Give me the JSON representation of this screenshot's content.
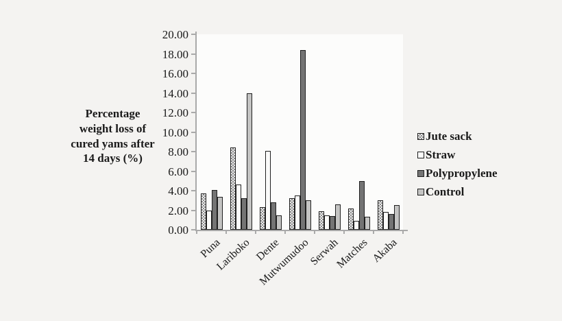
{
  "figure": {
    "background_color": "#f4f3f1",
    "plot_background_color": "#fcfcfb",
    "axis_color": "#a9a9a9",
    "bar_border_color": "#1f1f1f",
    "text_color": "#1a1a1a"
  },
  "chart_data": {
    "type": "bar",
    "title": "",
    "xlabel": "",
    "ylabel": "Percentage\nweight loss of\ncured yams after\n14 days (%)",
    "ylim": [
      0,
      20
    ],
    "ytick_step": 2,
    "ytick_labels": [
      "0.00",
      "2.00",
      "4.00",
      "6.00",
      "8.00",
      "10.00",
      "12.00",
      "14.00",
      "16.00",
      "18.00",
      "20.00"
    ],
    "grid": false,
    "legend_position": "right",
    "categories": [
      "Puna",
      "Lariboko",
      "Dente",
      "Mutwumudoo",
      "Serwah",
      "Matches",
      "Akaba"
    ],
    "series": [
      {
        "name": "Jute sack",
        "fill": "pattern-checker",
        "colors": [
          "#8e8e8e",
          "#ececec"
        ],
        "values": [
          3.7,
          8.4,
          2.3,
          3.2,
          1.9,
          2.2,
          3.0
        ]
      },
      {
        "name": "Straw",
        "fill": "solid",
        "colors": [
          "#fbfbfa"
        ],
        "values": [
          2.0,
          4.6,
          8.1,
          3.5,
          1.5,
          0.9,
          1.8
        ]
      },
      {
        "name": "Polypropylene",
        "fill": "solid",
        "colors": [
          "#747474"
        ],
        "values": [
          4.1,
          3.2,
          2.8,
          18.4,
          1.4,
          5.0,
          1.6
        ]
      },
      {
        "name": "Control",
        "fill": "solid",
        "colors": [
          "#c4c4c3"
        ],
        "values": [
          3.4,
          14.0,
          1.5,
          3.0,
          2.6,
          1.3,
          2.5
        ]
      }
    ]
  }
}
